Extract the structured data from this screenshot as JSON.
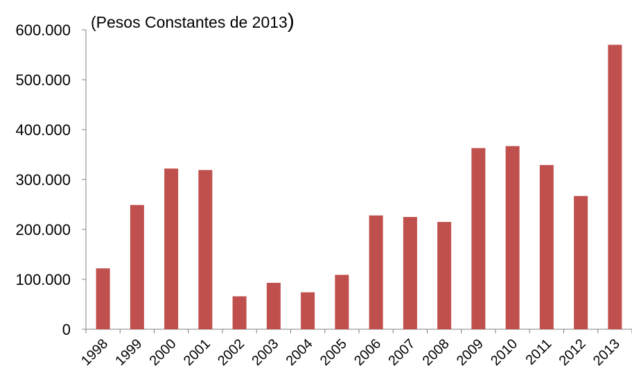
{
  "chart_data": {
    "type": "bar",
    "title": "(Pesos Constantes de 2013)",
    "title_text": "(Pesos Constantes de 2013",
    "title_close": ")",
    "xlabel": "",
    "ylabel": "",
    "categories": [
      "1998",
      "1999",
      "2000",
      "2001",
      "2002",
      "2003",
      "2004",
      "2005",
      "2006",
      "2007",
      "2008",
      "2009",
      "2010",
      "2011",
      "2012",
      "2013"
    ],
    "values": [
      122000,
      249000,
      322000,
      319000,
      66000,
      93000,
      74000,
      109000,
      228000,
      225000,
      215000,
      363000,
      367000,
      329000,
      267000,
      570000
    ],
    "ylim": [
      0,
      600000
    ],
    "yticks": [
      0,
      100000,
      200000,
      300000,
      400000,
      500000,
      600000
    ],
    "ytick_labels": [
      "0",
      "100.000",
      "200.000",
      "300.000",
      "400.000",
      "500.000",
      "600.000"
    ],
    "bar_color": "#C0504D",
    "grid": false,
    "legend": "none"
  }
}
